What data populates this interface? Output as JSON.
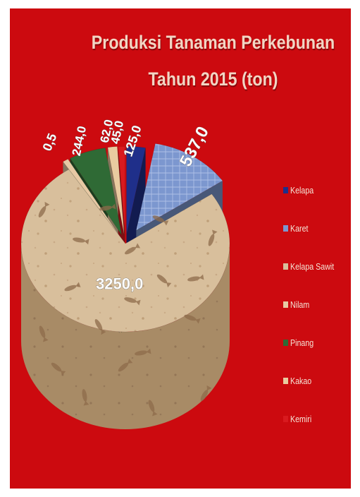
{
  "chart_data": {
    "type": "pie",
    "title": "Produksi Tanaman Perkebunan Tahun 2015 (ton)",
    "categories": [
      "Kelapa",
      "Karet",
      "Kelapa Sawit",
      "Nilam",
      "Pinang",
      "Kakao",
      "Kemiri"
    ],
    "values": [
      125.0,
      537.0,
      3250.0,
      0.5,
      244.0,
      62.0,
      45.0
    ],
    "data_labels": [
      "125,0",
      "537,0",
      "3250,0",
      "0,5",
      "244,0",
      "62,0",
      "45,0"
    ],
    "legend_position": "right",
    "exploded": true,
    "three_d": true
  },
  "colors": {
    "background": "#cc0a0f",
    "title_text": "#f2d6c4",
    "Kelapa": "#1f2f8a",
    "Karet": "#7c97cf",
    "Kelapa Sawit": "#d8bf9c",
    "Nilam": "#e7c9a4",
    "Pinang": "#2f6a35",
    "Kakao": "#e9cba0",
    "Kemiri": "#d91a1f"
  },
  "icons": {
    "texture": "fish-fossil-pattern"
  }
}
